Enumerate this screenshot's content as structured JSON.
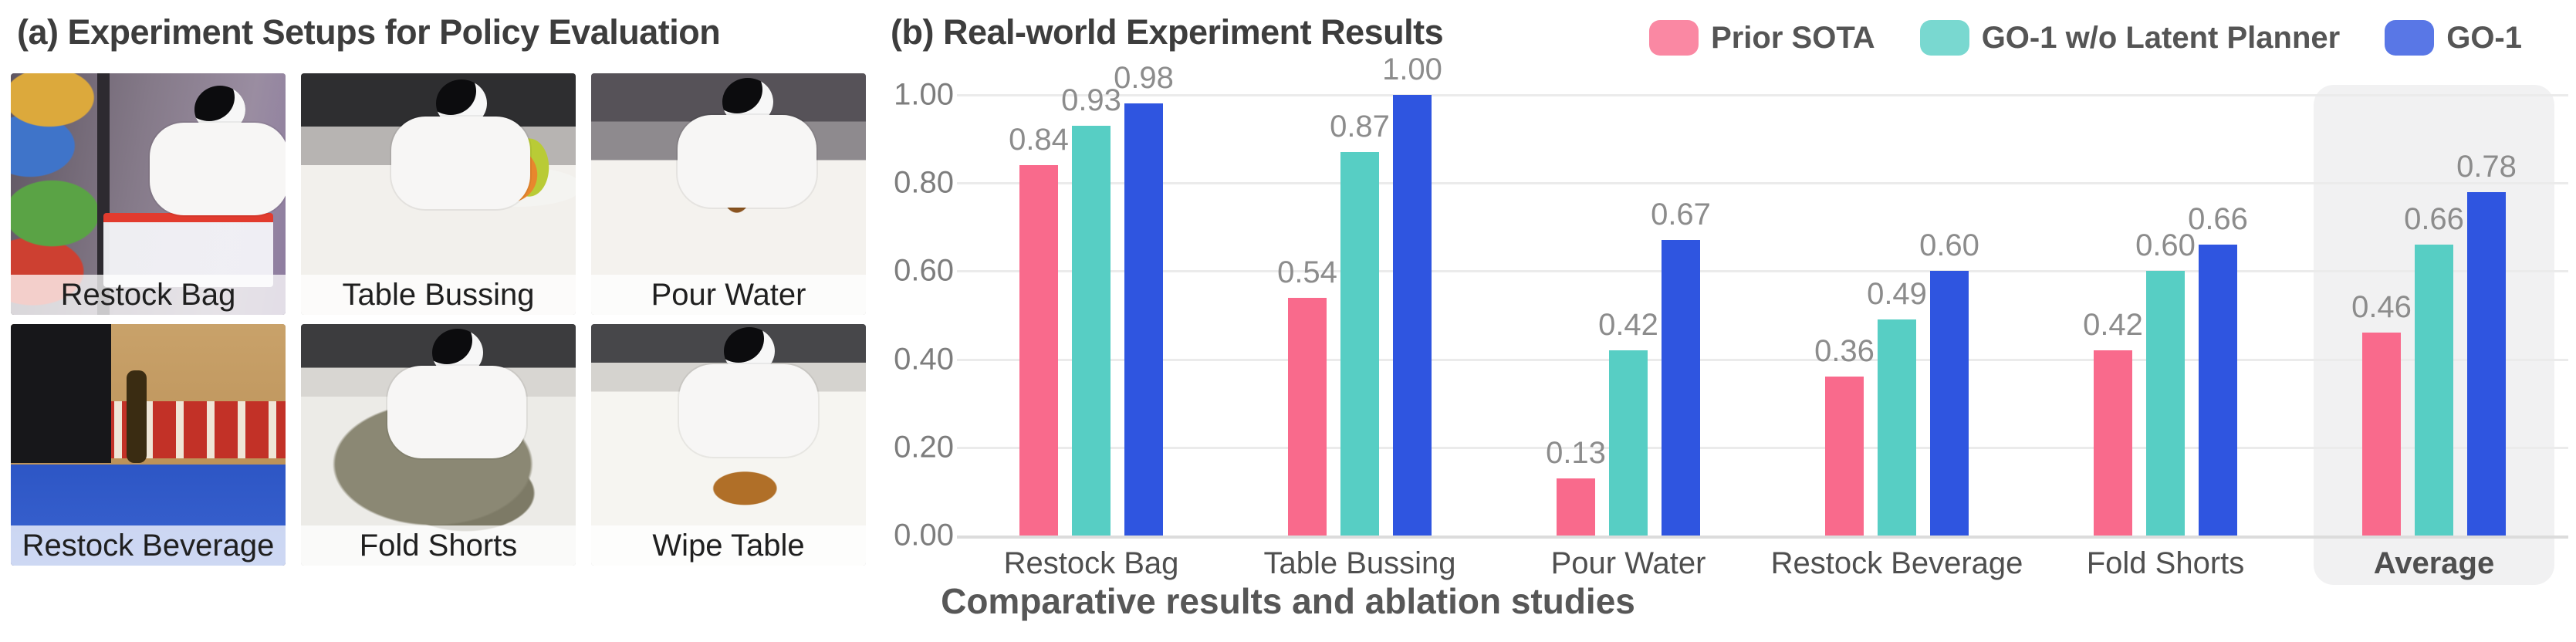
{
  "figure": {
    "panel_a": {
      "title": "(a) Experiment Setups for Policy Evaluation",
      "photos": [
        {
          "id": "restock-bag",
          "label": "Restock Bag"
        },
        {
          "id": "table-bussing",
          "label": "Table Bussing"
        },
        {
          "id": "pour-water",
          "label": "Pour Water"
        },
        {
          "id": "restock-beverage",
          "label": "Restock Beverage"
        },
        {
          "id": "fold-shorts",
          "label": "Fold Shorts"
        },
        {
          "id": "wipe-table",
          "label": "Wipe Table"
        }
      ]
    },
    "panel_b": {
      "title": "(b) Real-world Experiment Results",
      "caption": "Comparative results and ablation studies"
    }
  },
  "chart_data": {
    "type": "bar",
    "title": "(b) Real-world Experiment Results",
    "categories": [
      "Restock Bag",
      "Table Bussing",
      "Pour Water",
      "Restock Beverage",
      "Fold Shorts",
      "Average"
    ],
    "series": [
      {
        "name": "Prior SOTA",
        "color": "#F96A8C",
        "values": [
          0.84,
          0.54,
          0.13,
          0.36,
          0.42,
          0.46
        ]
      },
      {
        "name": "GO-1 w/o Latent Planner",
        "color": "#57CEC4",
        "values": [
          0.93,
          0.87,
          0.42,
          0.49,
          0.6,
          0.66
        ]
      },
      {
        "name": "GO-1",
        "color": "#2F55E0",
        "values": [
          0.98,
          1.0,
          0.67,
          0.6,
          0.66,
          0.78
        ]
      }
    ],
    "xlabel": "",
    "ylabel": "",
    "ylim": [
      0,
      1.0
    ],
    "yticks": [
      "0.00",
      "0.20",
      "0.40",
      "0.60",
      "0.80",
      "1.00"
    ],
    "grid": true,
    "legend_position": "top-right",
    "value_labels": true,
    "highlighted_category": "Average",
    "highlight_color": "#F1F1F2",
    "grid_color": "#EBEBEB",
    "baseline_color": "#DCDCDC",
    "value_label_color": "#8C8C8C",
    "tick_label_color": "#7D7D7D"
  }
}
